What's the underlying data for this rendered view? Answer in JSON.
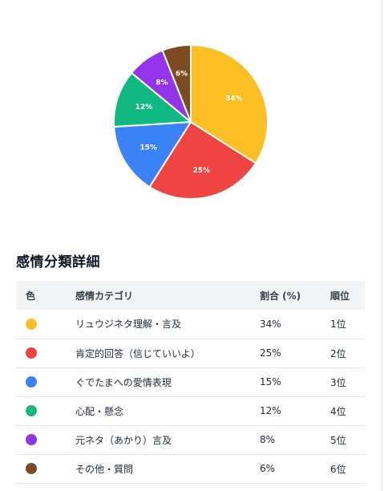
{
  "chart_data": {
    "type": "pie",
    "categories": [
      "リュウジネタ理解・言及",
      "肯定的回答（信じていいよ）",
      "ぐでたまへの愛情表現",
      "心配・懸念",
      "元ネタ（あかり）言及",
      "その他・質問"
    ],
    "values": [
      34,
      25,
      15,
      12,
      8,
      6
    ],
    "labels": [
      "34%",
      "25%",
      "15%",
      "12%",
      "8%",
      "6%"
    ],
    "colors": [
      "#fbbf24",
      "#ef4444",
      "#3b82f6",
      "#10b981",
      "#9333ea",
      "#7c4a23"
    ]
  },
  "section_title": "感情分類詳細",
  "table": {
    "headers": {
      "color": "色",
      "category": "感情カテゴリ",
      "ratio": "割合 (%)",
      "rank": "順位"
    },
    "rows": [
      {
        "color": "#fbbf24",
        "category": "リュウジネタ理解・言及",
        "ratio": "34%",
        "rank": "1位"
      },
      {
        "color": "#ef4444",
        "category": "肯定的回答（信じていいよ）",
        "ratio": "25%",
        "rank": "2位"
      },
      {
        "color": "#3b82f6",
        "category": "ぐでたまへの愛情表現",
        "ratio": "15%",
        "rank": "3位"
      },
      {
        "color": "#10b981",
        "category": "心配・懸念",
        "ratio": "12%",
        "rank": "4位"
      },
      {
        "color": "#9333ea",
        "category": "元ネタ（あかり）言及",
        "ratio": "8%",
        "rank": "5位"
      },
      {
        "color": "#7c4a23",
        "category": "その他・質問",
        "ratio": "6%",
        "rank": "6位"
      }
    ]
  }
}
